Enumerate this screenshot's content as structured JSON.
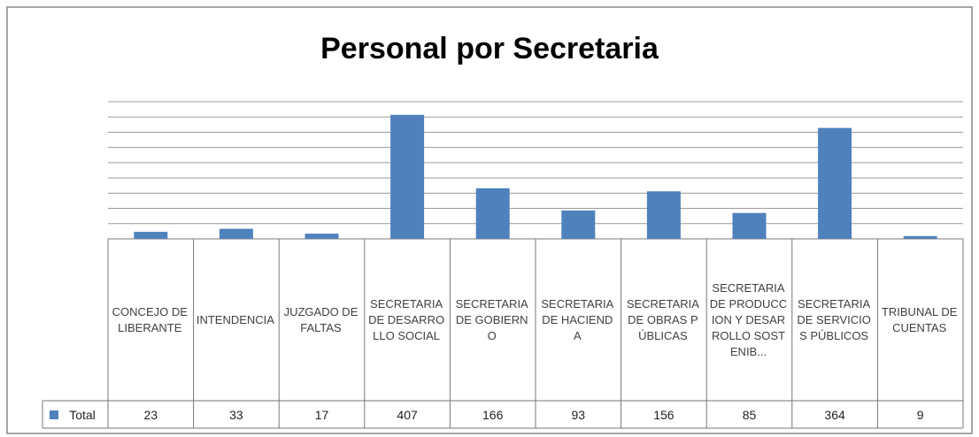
{
  "chart_data": {
    "type": "bar",
    "title": "Personal por Secretaria",
    "categories": [
      "CONCEJO DELIBERANTE",
      "INTENDENCIA",
      "JUZGADO DE FALTAS",
      "SECRETARIA DE DESARROLLO SOCIAL",
      "SECRETARIA DE GOBIERNO",
      "SECRETARIA DE HACIENDA",
      "SECRETARIA DE OBRAS PÚBLICAS",
      "SECRETARIA DE PRODUCCION Y DESARROLLO SOSTENIB...",
      "SECRETARIA DE SERVICIOS PÚBLICOS",
      "TRIBUNAL DE CUENTAS"
    ],
    "series": [
      {
        "name": "Total",
        "color": "#4f81bd",
        "values": [
          23,
          33,
          17,
          407,
          166,
          93,
          156,
          85,
          364,
          9
        ]
      }
    ],
    "ylim": [
      0,
      450
    ],
    "yticks": [
      0,
      50,
      100,
      150,
      200,
      250,
      300,
      350,
      400,
      450
    ],
    "grid": true
  }
}
